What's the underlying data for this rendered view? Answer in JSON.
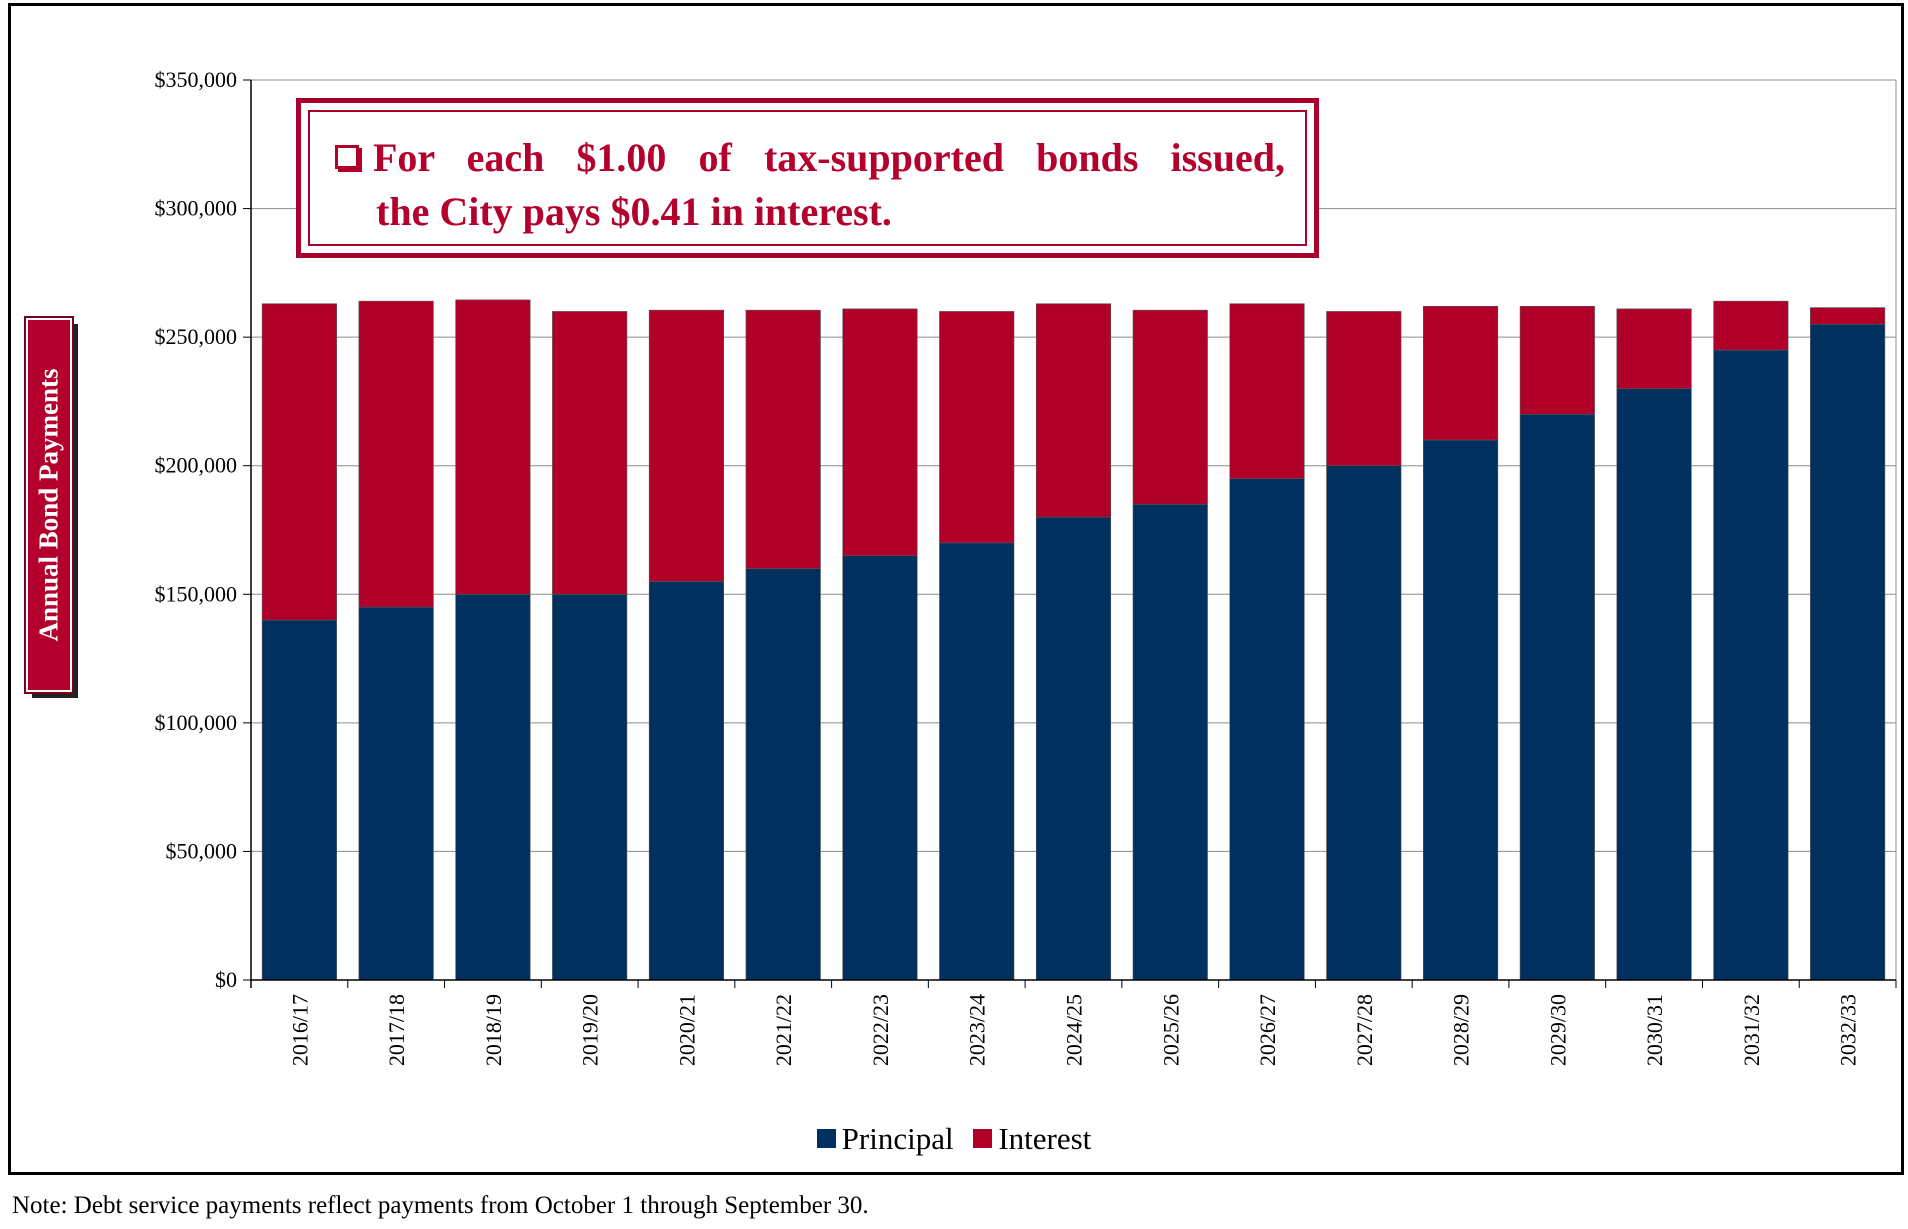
{
  "callout": {
    "line1": "For each $1.00 of tax-supported bonds issued,",
    "line2": "the City pays $0.41 in interest."
  },
  "note": "Note: Debt service payments reflect payments from October 1 through September 30.",
  "chart_data": {
    "type": "bar",
    "stacked": true,
    "title": "",
    "xlabel": "",
    "ylabel": "Annual Bond Payments",
    "ylim": [
      0,
      350000
    ],
    "yticks": [
      "$0",
      "$50,000",
      "$100,000",
      "$150,000",
      "$200,000",
      "$250,000",
      "$300,000",
      "$350,000"
    ],
    "grid": true,
    "legend_position": "bottom",
    "categories": [
      "2016/17",
      "2017/18",
      "2018/19",
      "2019/20",
      "2020/21",
      "2021/22",
      "2022/23",
      "2023/24",
      "2024/25",
      "2025/26",
      "2026/27",
      "2027/28",
      "2028/29",
      "2029/30",
      "2030/31",
      "2031/32",
      "2032/33"
    ],
    "series": [
      {
        "name": "Principal",
        "color": "#00305e",
        "values": [
          140000,
          145000,
          150000,
          150000,
          155000,
          160000,
          165000,
          170000,
          180000,
          185000,
          195000,
          200000,
          210000,
          220000,
          230000,
          245000,
          255000
        ]
      },
      {
        "name": "Interest",
        "color": "#b0002a",
        "values": [
          123000,
          119000,
          114500,
          110000,
          105500,
          100500,
          96000,
          90000,
          83000,
          75500,
          68000,
          60000,
          52000,
          42000,
          31000,
          19000,
          6500
        ]
      }
    ]
  }
}
